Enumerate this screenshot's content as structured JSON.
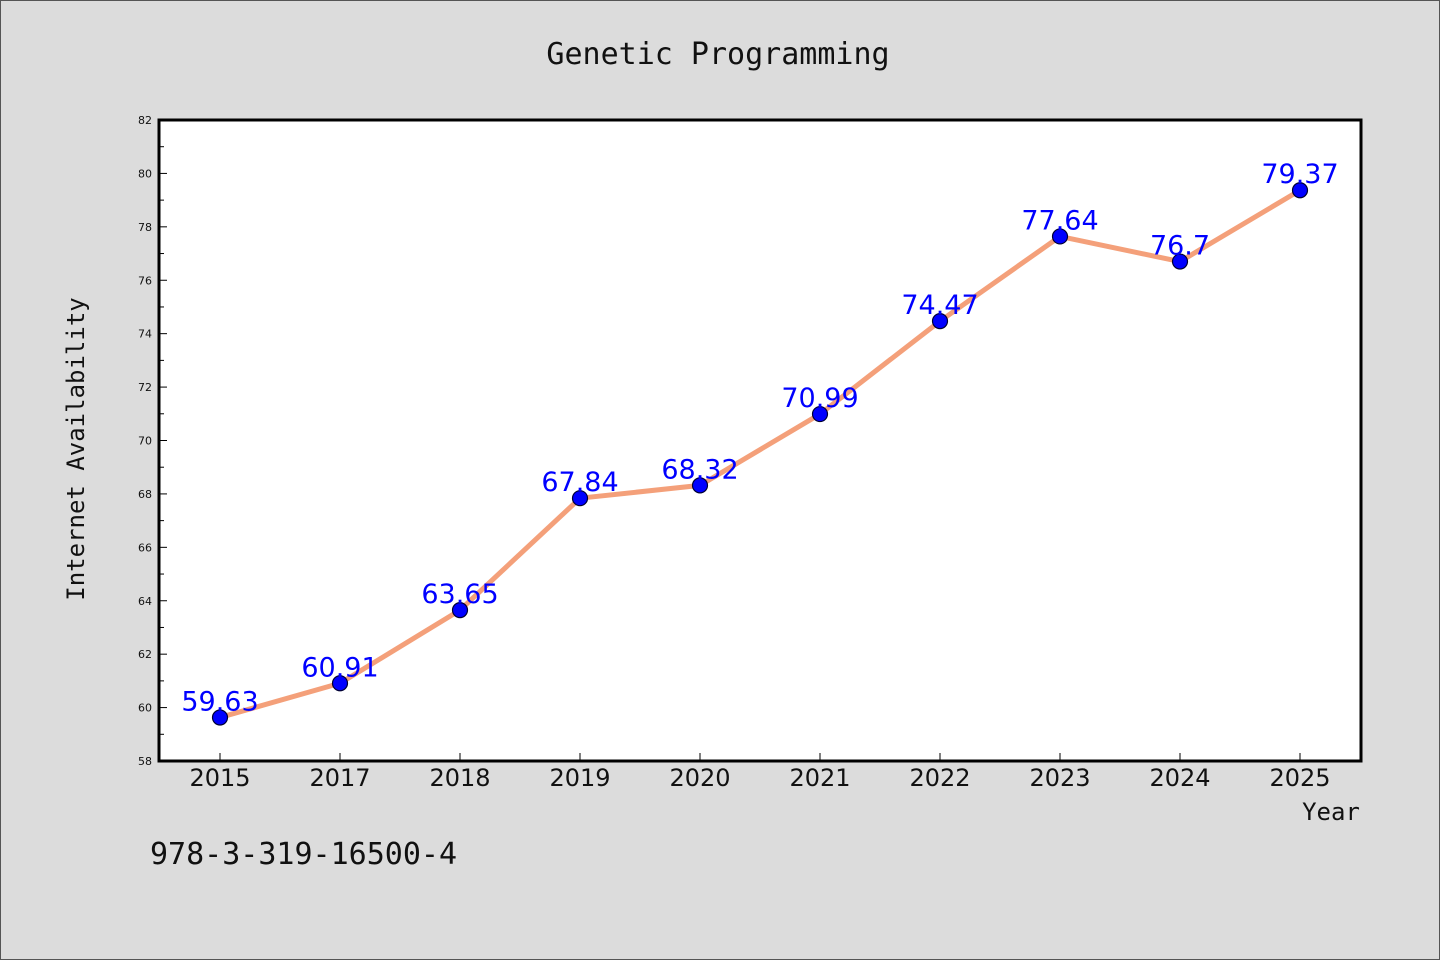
{
  "chart_data": {
    "type": "line",
    "title": "Genetic Programming",
    "xlabel": "Year",
    "ylabel": "Internet Availability",
    "categories": [
      "2015",
      "2017",
      "2018",
      "2019",
      "2020",
      "2021",
      "2022",
      "2023",
      "2024",
      "2025"
    ],
    "series": [
      {
        "values": [
          59.63,
          60.91,
          63.65,
          67.84,
          68.32,
          70.99,
          74.47,
          77.64,
          76.7,
          79.37
        ],
        "labels": [
          "59.63",
          "60.91",
          "63.65",
          "67.84",
          "68.32",
          "70.99",
          "74.47",
          "77.64",
          "76.7",
          "79.37"
        ],
        "line_color": "#f4a07a",
        "marker_color": "#0000ff",
        "label_color": "#0000ff"
      }
    ],
    "ylim": [
      58,
      82
    ],
    "yticks": [
      "58",
      "60",
      "62",
      "64",
      "66",
      "68",
      "70",
      "72",
      "74",
      "76",
      "78",
      "80",
      "82"
    ],
    "grid": false,
    "legend": "none"
  },
  "annotation": "978-3-319-16500-4",
  "colors": {
    "background": "#dcdcdc",
    "plot_background": "#ffffff"
  }
}
